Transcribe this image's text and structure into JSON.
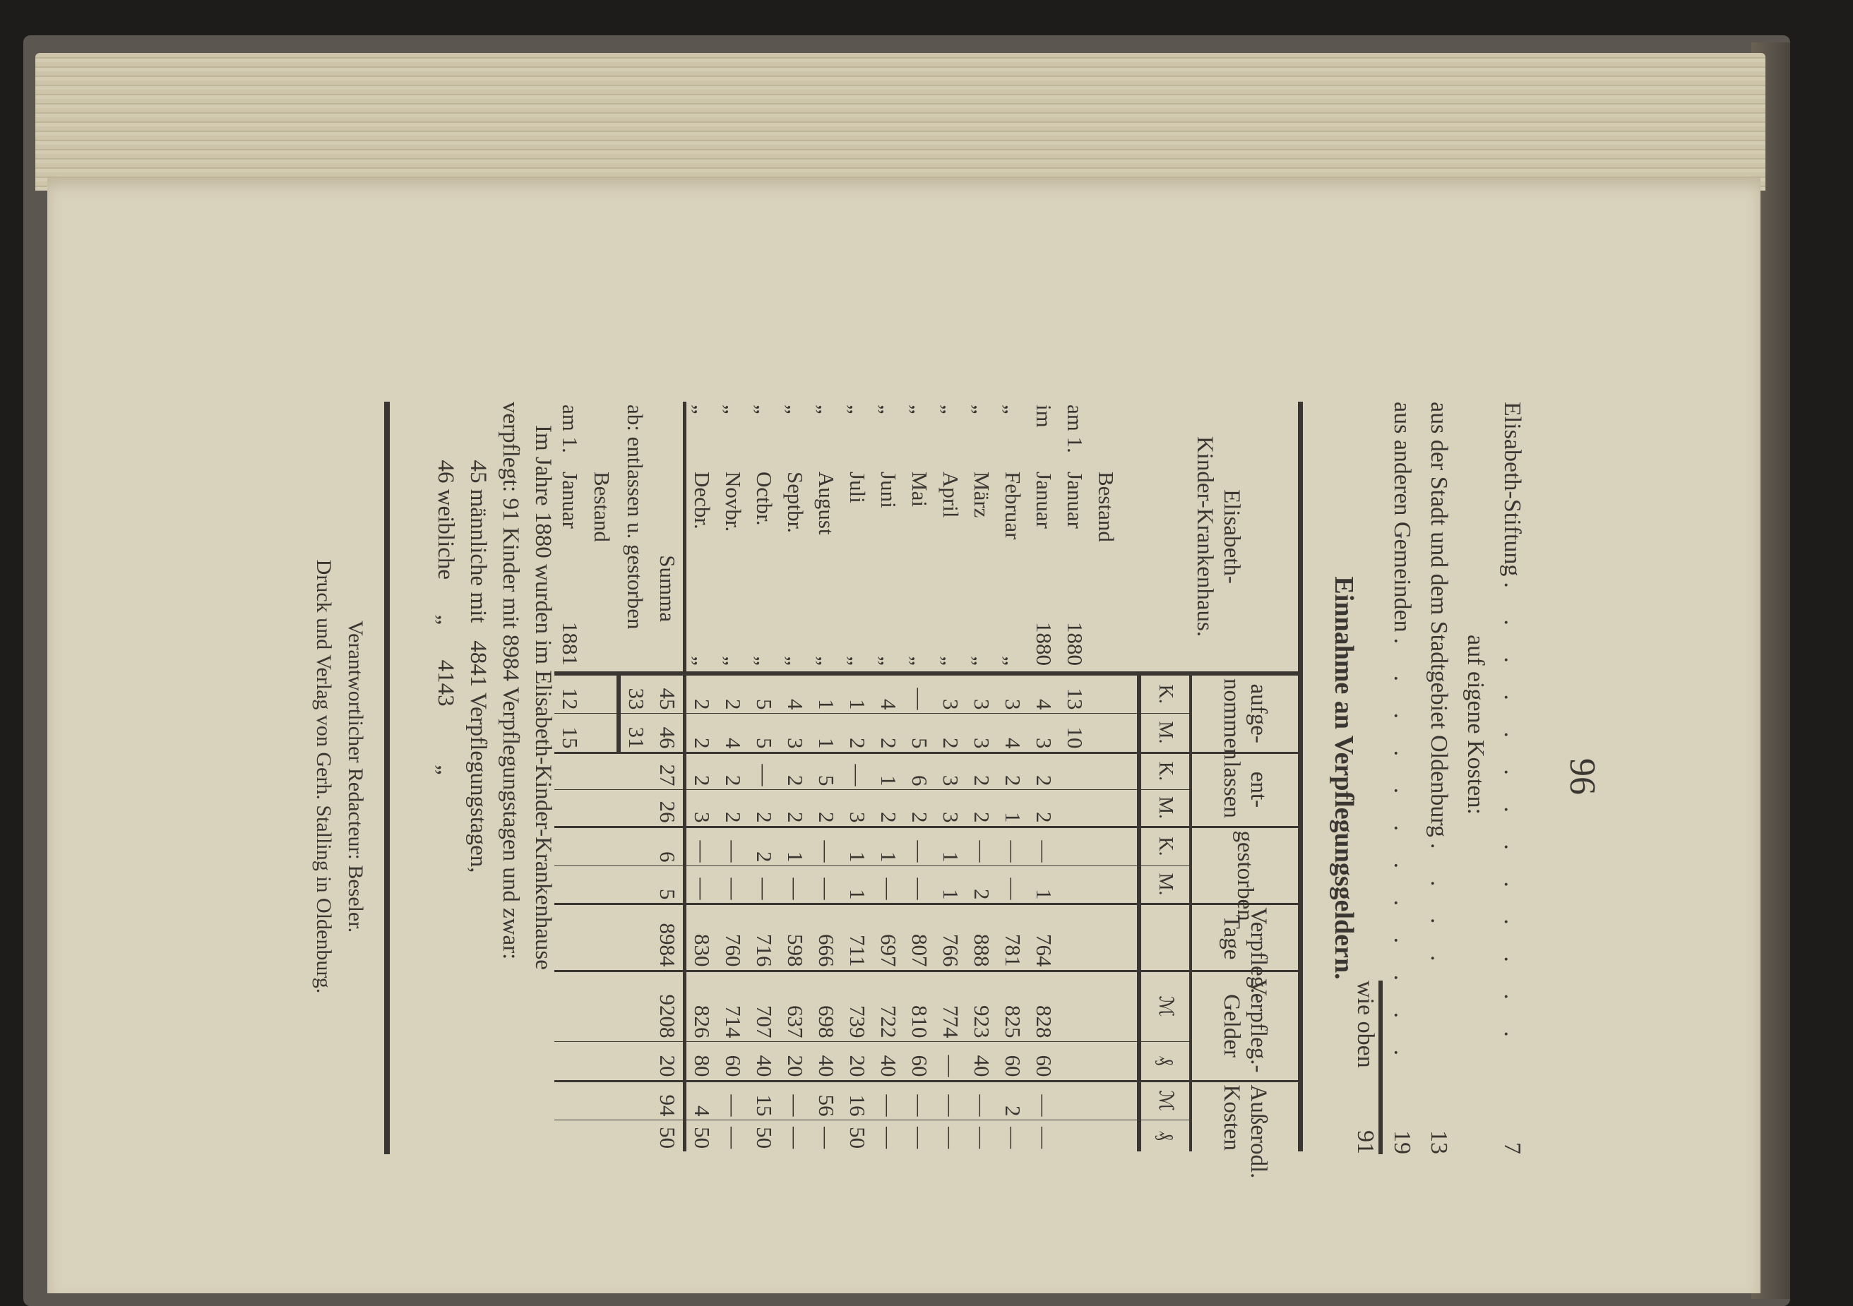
{
  "page_number": "96",
  "income_lines": [
    {
      "label": "Elisabeth-Stiftung",
      "dots": ". . . . . . . . . . . . .",
      "amount": "7"
    },
    {
      "label": "auf eigene Kosten:",
      "dots": "",
      "amount": ""
    },
    {
      "label": "aus der Stadt und dem Stadtgebiet Oldenburg",
      "dots": ". . . .",
      "amount": "13"
    },
    {
      "label": "aus anderen Gemeinden",
      "dots": ". . . . . . . . . . . .",
      "amount": "19"
    },
    {
      "label": "wie oben",
      "dots": "",
      "amount": "91"
    }
  ],
  "title": "Einnahme an Verpflegungsgeldern.",
  "table": {
    "stub_header": [
      "Elisabeth-",
      "Kinder-Krankenhaus."
    ],
    "groups": [
      {
        "label": [
          "aufge-",
          "nommen"
        ],
        "sub": [
          "K.",
          "M."
        ]
      },
      {
        "label": [
          "ent-",
          "lassen"
        ],
        "sub": [
          "K.",
          "M."
        ]
      },
      {
        "label": [
          "gestorben",
          ""
        ],
        "sub": [
          "K.",
          "M."
        ]
      },
      {
        "label": [
          "Verpfleg.-",
          "Tage"
        ],
        "sub": [
          ""
        ]
      },
      {
        "label": [
          "Verpfleg.-",
          "Gelder"
        ],
        "sub": [
          "ℳ",
          "₰"
        ]
      },
      {
        "label": [
          "Außerodl.",
          "Kosten"
        ],
        "sub": [
          "ℳ",
          "₰"
        ]
      }
    ],
    "rows": [
      {
        "p": "",
        "m": "Bestand",
        "y": "",
        "v": [
          "",
          "",
          "",
          "",
          "",
          "",
          "",
          "",
          "",
          "",
          ""
        ]
      },
      {
        "p": "am 1.",
        "m": "Januar",
        "y": "1880",
        "v": [
          "13",
          "10",
          "",
          "",
          "",
          "",
          "",
          "",
          "",
          "",
          ""
        ]
      },
      {
        "p": "im",
        "m": "Januar",
        "y": "1880",
        "v": [
          "4",
          "3",
          "2",
          "2",
          "—",
          "1",
          "764",
          "828",
          "60",
          "—",
          "—"
        ]
      },
      {
        "p": "„",
        "m": "Februar",
        "y": "„",
        "v": [
          "3",
          "4",
          "2",
          "1",
          "—",
          "—",
          "781",
          "825",
          "60",
          "2",
          "—"
        ]
      },
      {
        "p": "„",
        "m": "März",
        "y": "„",
        "v": [
          "3",
          "3",
          "2",
          "2",
          "—",
          "2",
          "888",
          "923",
          "40",
          "—",
          "—"
        ]
      },
      {
        "p": "„",
        "m": "April",
        "y": "„",
        "v": [
          "3",
          "2",
          "3",
          "3",
          "1",
          "1",
          "766",
          "774",
          "—",
          "—",
          "—"
        ]
      },
      {
        "p": "„",
        "m": "Mai",
        "y": "„",
        "v": [
          "—",
          "5",
          "6",
          "2",
          "—",
          "—",
          "807",
          "810",
          "60",
          "—",
          "—"
        ]
      },
      {
        "p": "„",
        "m": "Juni",
        "y": "„",
        "v": [
          "4",
          "2",
          "1",
          "2",
          "1",
          "—",
          "697",
          "722",
          "40",
          "—",
          "—"
        ]
      },
      {
        "p": "„",
        "m": "Juli",
        "y": "„",
        "v": [
          "1",
          "2",
          "—",
          "3",
          "1",
          "1",
          "711",
          "739",
          "20",
          "16",
          "50"
        ]
      },
      {
        "p": "„",
        "m": "August",
        "y": "„",
        "v": [
          "1",
          "1",
          "5",
          "2",
          "—",
          "—",
          "666",
          "698",
          "40",
          "56",
          "—"
        ]
      },
      {
        "p": "„",
        "m": "Septbr.",
        "y": "„",
        "v": [
          "4",
          "3",
          "2",
          "2",
          "1",
          "—",
          "598",
          "637",
          "20",
          "—",
          "—"
        ]
      },
      {
        "p": "„",
        "m": "Octbr.",
        "y": "„",
        "v": [
          "5",
          "5",
          "—",
          "2",
          "2",
          "—",
          "716",
          "707",
          "40",
          "15",
          "50"
        ]
      },
      {
        "p": "„",
        "m": "Novbr.",
        "y": "„",
        "v": [
          "2",
          "4",
          "2",
          "2",
          "—",
          "—",
          "760",
          "714",
          "60",
          "—",
          "—"
        ]
      },
      {
        "p": "„",
        "m": "Decbr.",
        "y": "„",
        "v": [
          "2",
          "2",
          "2",
          "3",
          "—",
          "—",
          "830",
          "826",
          "80",
          "4",
          "50"
        ]
      }
    ],
    "summa": {
      "label": "Summa",
      "v": [
        "45",
        "46",
        "27",
        "26",
        "6",
        "5",
        "8984",
        "9208",
        "20",
        "94",
        "50"
      ]
    },
    "ab": {
      "label": "ab: entlassen u. gestorben",
      "v": [
        "33",
        "31"
      ]
    },
    "bestand_label": "Bestand",
    "end": {
      "p": "am 1.",
      "m": "Januar",
      "y": "1881",
      "v": [
        "12",
        "15"
      ]
    }
  },
  "paragraph": [
    "    Im Jahre 1880 wurden im Elisabeth-Kinder-Krankenhause",
    "verpflegt: 91 Kinder mit 8984 Verpflegungstagen und zwar:",
    "          45 männliche mit   4841 Verpflegungstagen,",
    "          46 weibliche      „      4143          „"
  ],
  "footer": {
    "editor": "Verantwortlicher Redacteur: Beseler.",
    "publisher": "Druck und Verlag von Gerh. Stalling in Oldenburg."
  }
}
